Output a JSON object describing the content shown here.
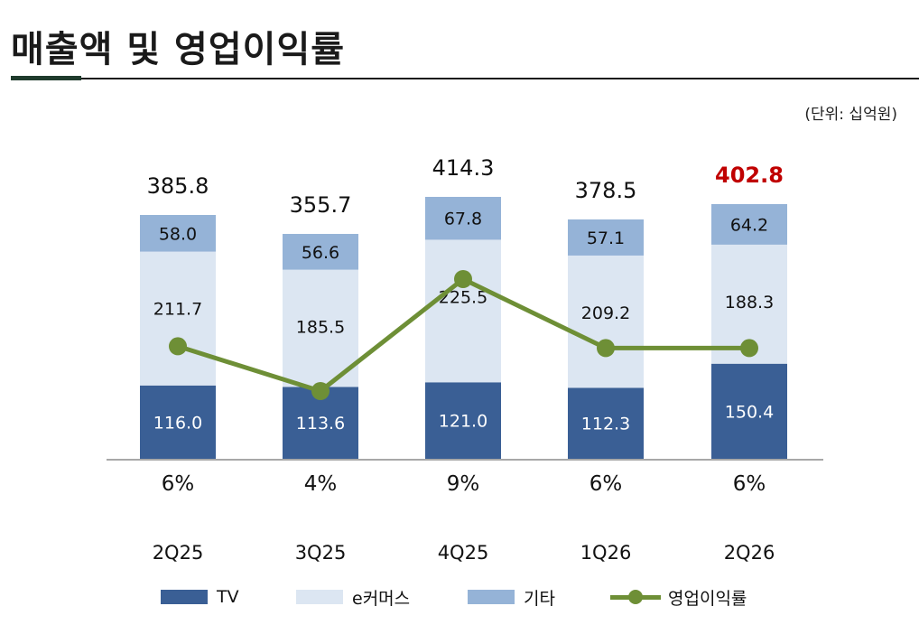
{
  "header": {
    "title": "매출액 및 영업이익률",
    "unit": "(단위:  십억원)"
  },
  "colors": {
    "tv": "#3a5f95",
    "ecommerce": "#dce6f2",
    "other": "#95b3d7",
    "margin_line": "#6e8f36",
    "highlight_total": "#c00000"
  },
  "chart_data": {
    "type": "bar",
    "stacked": true,
    "categories": [
      "2Q25",
      "3Q25",
      "4Q25",
      "1Q26",
      "2Q26"
    ],
    "series": [
      {
        "name": "TV",
        "values": [
          116.0,
          113.6,
          121.0,
          112.3,
          150.4
        ]
      },
      {
        "name": "e커머스",
        "values": [
          211.7,
          185.5,
          225.5,
          209.2,
          188.3
        ]
      },
      {
        "name": "기타",
        "values": [
          58.0,
          56.6,
          67.8,
          57.1,
          64.2
        ]
      }
    ],
    "totals": [
      385.8,
      355.7,
      414.3,
      378.5,
      402.8
    ],
    "line_series": {
      "name": "영업이익률",
      "values": [
        6,
        4,
        9,
        6,
        6
      ],
      "labels": [
        "6%",
        "4%",
        "9%",
        "6%",
        "6%"
      ]
    },
    "highlight_category": "2Q26",
    "legend_position": "bottom",
    "grid": false
  }
}
